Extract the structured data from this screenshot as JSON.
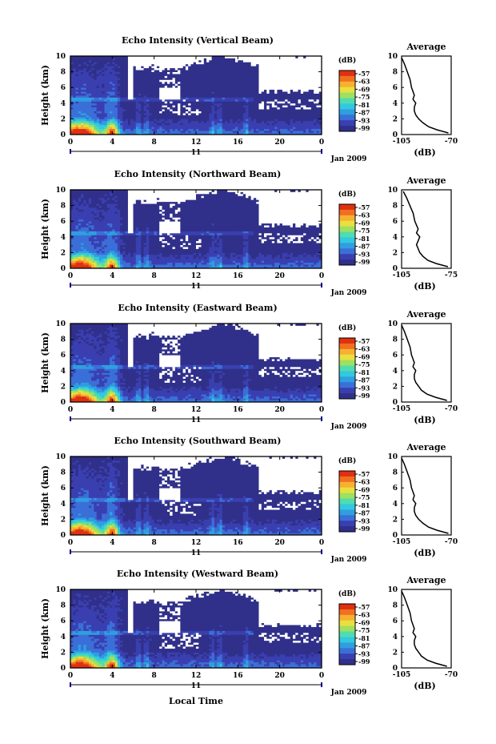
{
  "chart_data": [
    {
      "type": "heatmap",
      "title": "Echo Intensity (Vertical Beam)",
      "ylabel": "Height (km)",
      "xticks": [
        "0",
        "4",
        "8",
        "12",
        "16",
        "20",
        "0"
      ],
      "yticks": [
        "0",
        "2",
        "4",
        "6",
        "8",
        "10"
      ],
      "xlim": [
        0,
        24
      ],
      "ylim": [
        0,
        10
      ],
      "date_day": "11",
      "date_month": "Jan 2009",
      "colorbar": {
        "label": "(dB)",
        "ticks": [
          "-57",
          "-63",
          "-69",
          "-75",
          "-81",
          "-87",
          "-93",
          "-99"
        ]
      },
      "profile": {
        "title": "Average",
        "xlabel": "(dB)",
        "xticks": [
          "-105",
          "-70"
        ],
        "xlim": [
          -105,
          -70
        ],
        "heights": [
          0.2,
          0.6,
          1.0,
          1.5,
          2.0,
          2.5,
          3.0,
          3.5,
          4.0,
          4.5,
          5.0,
          5.5,
          6.0,
          7.0,
          8.0,
          9.0,
          9.8
        ],
        "values": [
          -72,
          -80,
          -86,
          -90,
          -93,
          -95,
          -96,
          -96,
          -95,
          -97,
          -96,
          -97,
          -98,
          -99,
          -101,
          -103,
          -105
        ]
      }
    },
    {
      "type": "heatmap",
      "title": "Echo Intensity (Northward Beam)",
      "ylabel": "Height (km)",
      "xticks": [
        "0",
        "4",
        "8",
        "12",
        "16",
        "20",
        "0"
      ],
      "yticks": [
        "0",
        "2",
        "4",
        "6",
        "8",
        "10"
      ],
      "xlim": [
        0,
        24
      ],
      "ylim": [
        0,
        10
      ],
      "date_day": "11",
      "date_month": "Jan 2009",
      "colorbar": {
        "label": "(dB)",
        "ticks": [
          "-57",
          "-63",
          "-69",
          "-75",
          "-81",
          "-87",
          "-93",
          "-99"
        ]
      },
      "profile": {
        "title": "Average",
        "xlabel": "(dB)",
        "xticks": [
          "-105",
          "-75"
        ],
        "xlim": [
          -105,
          -75
        ],
        "heights": [
          0.2,
          0.6,
          1.0,
          1.5,
          2.0,
          2.5,
          3.0,
          3.5,
          4.0,
          4.5,
          5.0,
          5.5,
          6.0,
          7.0,
          8.0,
          9.0,
          9.8
        ],
        "values": [
          -77,
          -84,
          -89,
          -92,
          -94,
          -95,
          -96,
          -95,
          -94,
          -96,
          -95,
          -96,
          -97,
          -98,
          -100,
          -102,
          -104
        ]
      }
    },
    {
      "type": "heatmap",
      "title": "Echo Intensity (Eastward Beam)",
      "ylabel": "Height (km)",
      "xticks": [
        "0",
        "4",
        "8",
        "12",
        "16",
        "20",
        "0"
      ],
      "yticks": [
        "0",
        "2",
        "4",
        "6",
        "8",
        "10"
      ],
      "xlim": [
        0,
        24
      ],
      "ylim": [
        0,
        10
      ],
      "date_day": "11",
      "date_month": "Jan 2009",
      "colorbar": {
        "label": "(dB)",
        "ticks": [
          "-57",
          "-63",
          "-69",
          "-75",
          "-81",
          "-87",
          "-93",
          "-99"
        ]
      },
      "profile": {
        "title": "Average",
        "xlabel": "(dB)",
        "xticks": [
          "-105",
          "-70"
        ],
        "xlim": [
          -105,
          -70
        ],
        "heights": [
          0.2,
          0.6,
          1.0,
          1.5,
          2.0,
          2.5,
          3.0,
          3.5,
          4.0,
          4.5,
          5.0,
          5.5,
          6.0,
          7.0,
          8.0,
          9.0,
          9.8
        ],
        "values": [
          -73,
          -81,
          -87,
          -91,
          -93,
          -95,
          -96,
          -96,
          -95,
          -97,
          -96,
          -97,
          -98,
          -99,
          -101,
          -103,
          -105
        ]
      }
    },
    {
      "type": "heatmap",
      "title": "Echo Intensity (Southward Beam)",
      "ylabel": "Height (km)",
      "xticks": [
        "0",
        "4",
        "8",
        "12",
        "16",
        "20",
        "0"
      ],
      "yticks": [
        "0",
        "2",
        "4",
        "6",
        "8",
        "10"
      ],
      "xlim": [
        0,
        24
      ],
      "ylim": [
        0,
        10
      ],
      "date_day": "11",
      "date_month": "Jan 2009",
      "colorbar": {
        "label": "(dB)",
        "ticks": [
          "-57",
          "-63",
          "-69",
          "-75",
          "-81",
          "-87",
          "-93",
          "-99"
        ]
      },
      "profile": {
        "title": "Average",
        "xlabel": "(dB)",
        "xticks": [
          "-105",
          "-70"
        ],
        "xlim": [
          -105,
          -70
        ],
        "heights": [
          0.2,
          0.6,
          1.0,
          1.5,
          2.0,
          2.5,
          3.0,
          3.5,
          4.0,
          4.5,
          5.0,
          5.5,
          6.0,
          7.0,
          8.0,
          9.0,
          9.8
        ],
        "values": [
          -72,
          -80,
          -86,
          -90,
          -93,
          -95,
          -96,
          -96,
          -95,
          -97,
          -96,
          -97,
          -98,
          -99,
          -101,
          -103,
          -105
        ]
      }
    },
    {
      "type": "heatmap",
      "title": "Echo Intensity (Westward Beam)",
      "ylabel": "Height (km)",
      "xticks": [
        "0",
        "4",
        "8",
        "12",
        "16",
        "20",
        "0"
      ],
      "yticks": [
        "0",
        "2",
        "4",
        "6",
        "8",
        "10"
      ],
      "xlim": [
        0,
        24
      ],
      "ylim": [
        0,
        10
      ],
      "date_day": "11",
      "date_month": "Jan 2009",
      "colorbar": {
        "label": "(dB)",
        "ticks": [
          "-57",
          "-63",
          "-69",
          "-75",
          "-81",
          "-87",
          "-93",
          "-99"
        ]
      },
      "profile": {
        "title": "Average",
        "xlabel": "(dB)",
        "xticks": [
          "-105",
          "-70"
        ],
        "xlim": [
          -105,
          -70
        ],
        "heights": [
          0.2,
          0.6,
          1.0,
          1.5,
          2.0,
          2.5,
          3.0,
          3.5,
          4.0,
          4.5,
          5.0,
          5.5,
          6.0,
          7.0,
          8.0,
          9.0,
          9.8
        ],
        "values": [
          -73,
          -81,
          -87,
          -91,
          -93,
          -95,
          -96,
          -96,
          -95,
          -97,
          -96,
          -97,
          -98,
          -99,
          -101,
          -103,
          -105
        ]
      }
    }
  ],
  "xlabel": "Local Time",
  "colormap": [
    "#30308a",
    "#3a3fb0",
    "#3a6fd8",
    "#2f9fe0",
    "#33c8e0",
    "#4fdcb0",
    "#9fe060",
    "#e8e040",
    "#f8b030",
    "#f07020",
    "#e03010"
  ]
}
